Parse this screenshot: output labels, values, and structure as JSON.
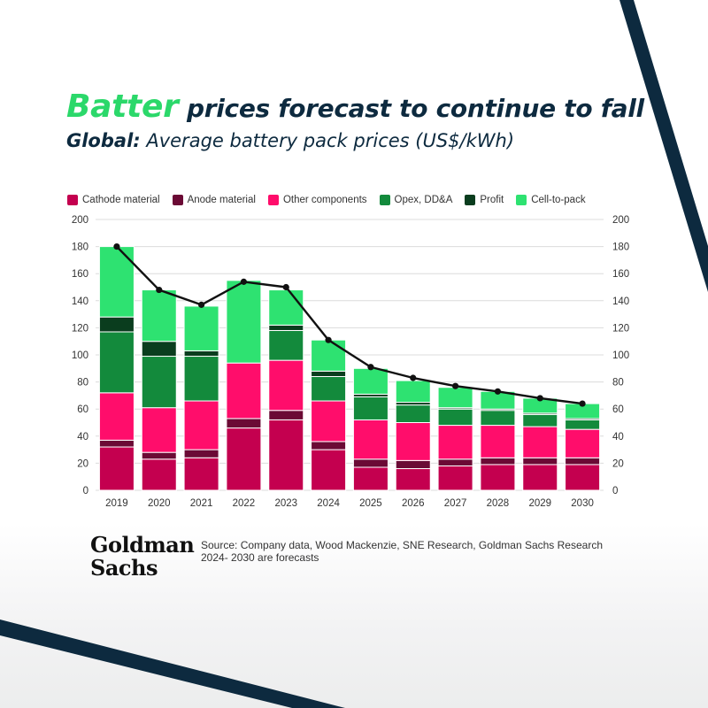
{
  "header": {
    "title_accent": "Batter",
    "title_rest": " prices forecast to continue to fall",
    "subtitle_lead": "Global:",
    "subtitle_rest": " Average battery pack prices (US$/kWh)"
  },
  "footer": {
    "logo_line1": "Goldman",
    "logo_line2": "Sachs",
    "source_line1": "Source: Company data, Wood Mackenzie, SNE Research, Goldman Sachs Research",
    "source_line2": "2024- 2030 are forecasts"
  },
  "colors": {
    "title_accent": "#2bd86a",
    "navy": "#0d2a3f"
  },
  "chart_data": {
    "type": "bar",
    "stacked": true,
    "categories": [
      "2019",
      "2020",
      "2021",
      "2022",
      "2023",
      "2024",
      "2025",
      "2026",
      "2027",
      "2028",
      "2029",
      "2030"
    ],
    "series": [
      {
        "name": "Cathode material",
        "color": "#c4004f",
        "values": [
          32,
          23,
          24,
          46,
          52,
          30,
          17,
          16,
          18,
          19,
          19,
          19
        ]
      },
      {
        "name": "Anode material",
        "color": "#6b0a35",
        "values": [
          5,
          5,
          6,
          7,
          7,
          6,
          6,
          6,
          5,
          5,
          5,
          5
        ]
      },
      {
        "name": "Other components",
        "color": "#ff0d6b",
        "values": [
          35,
          33,
          36,
          41,
          37,
          30,
          29,
          28,
          25,
          24,
          23,
          21
        ]
      },
      {
        "name": "Opex, DD&A",
        "color": "#138a3c",
        "values": [
          45,
          38,
          33,
          0,
          22,
          18,
          17,
          13,
          12,
          11,
          9,
          7
        ]
      },
      {
        "name": "Profit",
        "color": "#0a3d1e",
        "values": [
          11,
          11,
          4,
          0,
          4,
          4,
          2,
          2,
          1,
          1,
          1,
          1
        ]
      },
      {
        "name": "Cell-to-pack",
        "color": "#2ee271",
        "values": [
          52,
          38,
          33,
          61,
          26,
          23,
          19,
          16,
          15,
          13,
          11,
          11
        ]
      }
    ],
    "line": {
      "values": [
        180,
        148,
        137,
        154,
        150,
        111,
        91,
        83,
        77,
        73,
        68,
        64
      ]
    },
    "ylim": [
      0,
      200
    ],
    "yticks": [
      0,
      20,
      40,
      60,
      80,
      100,
      120,
      140,
      160,
      180,
      200
    ],
    "grid": true,
    "legend_position": "top-left"
  }
}
